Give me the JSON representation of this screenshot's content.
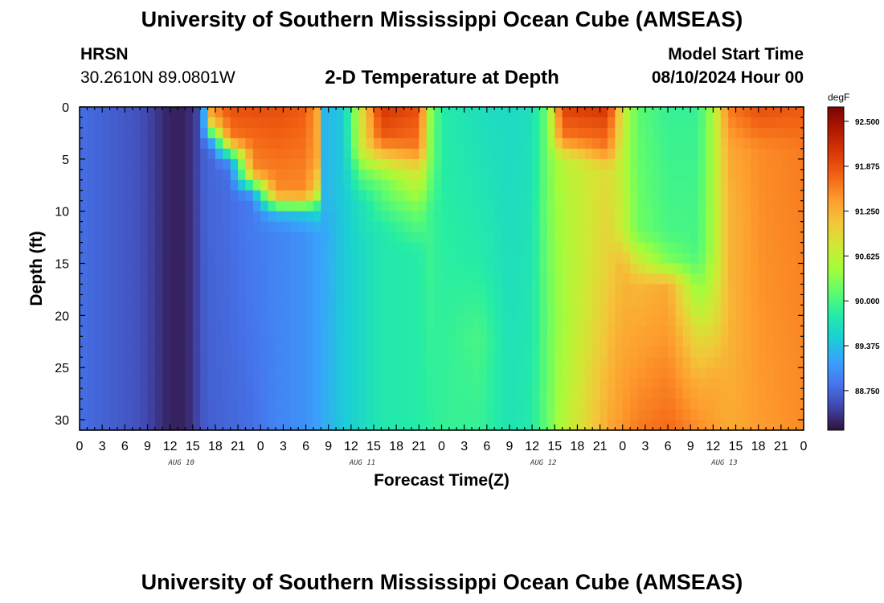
{
  "header": {
    "title": "University of Southern Mississippi Ocean Cube (AMSEAS)",
    "station_code": "HRSN",
    "station_coords": "30.2610N  89.0801W",
    "chart_subtitle": "2-D Temperature at Depth",
    "model_start_label": "Model Start Time",
    "model_start_value": "08/10/2024 Hour 00"
  },
  "footer": {
    "title_repeat": "University of Southern Mississippi Ocean Cube (AMSEAS)"
  },
  "chart_data": {
    "type": "heatmap",
    "title": "2-D Temperature at Depth",
    "xlabel": "Forecast Time(Z)",
    "ylabel": "Depth (ft)",
    "x_range_hours": [
      0,
      96
    ],
    "x_tick_labels": [
      "0",
      "3",
      "6",
      "9",
      "12",
      "15",
      "18",
      "21",
      "0",
      "3",
      "6",
      "9",
      "12",
      "15",
      "18",
      "21",
      "0",
      "3",
      "6",
      "9",
      "12",
      "15",
      "18",
      "21",
      "0",
      "3",
      "6",
      "9",
      "12",
      "15",
      "18",
      "21",
      "0"
    ],
    "x_day_labels": [
      "AUG 10",
      "AUG 11",
      "AUG 12",
      "AUG 13"
    ],
    "y_range": [
      0,
      31
    ],
    "y_tick_labels": [
      "0",
      "5",
      "10",
      "15",
      "20",
      "25",
      "30"
    ],
    "y_tick_values": [
      0,
      5,
      10,
      15,
      20,
      25,
      30
    ],
    "colorbar": {
      "unit": "degF",
      "min": 88.2,
      "max": 92.7,
      "tick_labels": [
        "92.500",
        "91.875",
        "91.250",
        "90.625",
        "90.000",
        "89.375",
        "88.750"
      ],
      "tick_values": [
        92.5,
        91.875,
        91.25,
        90.625,
        90.0,
        89.375,
        88.75
      ],
      "colormap": [
        "#30123b",
        "#4145ab",
        "#4675ed",
        "#39a2fc",
        "#1bcfd4",
        "#24eca6",
        "#61fc6c",
        "#a4fc3b",
        "#d1e834",
        "#f3c63a",
        "#fe9b2d",
        "#f36315",
        "#d93806",
        "#b11901",
        "#7a0403"
      ]
    },
    "grid": false,
    "columns": [
      {
        "hour": 0,
        "t": [
          [
            0,
            88.8
          ],
          [
            31,
            88.8
          ]
        ]
      },
      {
        "hour": 4,
        "t": [
          [
            0,
            88.7
          ],
          [
            31,
            88.7
          ]
        ]
      },
      {
        "hour": 8,
        "t": [
          [
            0,
            88.6
          ],
          [
            31,
            88.6
          ]
        ]
      },
      {
        "hour": 10,
        "t": [
          [
            0,
            88.45
          ],
          [
            31,
            88.45
          ]
        ]
      },
      {
        "hour": 12,
        "t": [
          [
            0,
            88.3
          ],
          [
            31,
            88.3
          ]
        ]
      },
      {
        "hour": 14,
        "t": [
          [
            0,
            88.3
          ],
          [
            31,
            88.3
          ]
        ]
      },
      {
        "hour": 15.5,
        "t": [
          [
            0,
            88.5
          ],
          [
            31,
            88.5
          ]
        ]
      },
      {
        "hour": 16.5,
        "t": [
          [
            0,
            89.2
          ],
          [
            2,
            89.2
          ],
          [
            3,
            88.9
          ],
          [
            4,
            88.7
          ],
          [
            31,
            88.65
          ]
        ]
      },
      {
        "hour": 17.5,
        "t": [
          [
            0,
            91.5
          ],
          [
            2,
            90.8
          ],
          [
            3,
            89.4
          ],
          [
            4,
            88.9
          ],
          [
            5,
            88.75
          ],
          [
            31,
            88.7
          ]
        ]
      },
      {
        "hour": 20,
        "t": [
          [
            0,
            91.9
          ],
          [
            3,
            91.6
          ],
          [
            4,
            90.6
          ],
          [
            5,
            89.2
          ],
          [
            6,
            88.85
          ],
          [
            7,
            88.8
          ],
          [
            31,
            88.75
          ]
        ]
      },
      {
        "hour": 23,
        "t": [
          [
            0,
            91.9
          ],
          [
            6,
            91.5
          ],
          [
            7,
            90.8
          ],
          [
            8,
            89.3
          ],
          [
            9,
            88.9
          ],
          [
            31,
            88.8
          ]
        ]
      },
      {
        "hour": 26,
        "t": [
          [
            0,
            91.9
          ],
          [
            8,
            91.5
          ],
          [
            9,
            90.9
          ],
          [
            10,
            89.4
          ],
          [
            11,
            89.1
          ],
          [
            12,
            88.95
          ],
          [
            31,
            88.95
          ]
        ]
      },
      {
        "hour": 30,
        "t": [
          [
            0,
            91.8
          ],
          [
            8,
            91.5
          ],
          [
            9,
            91.0
          ],
          [
            10,
            89.5
          ],
          [
            11,
            89.3
          ],
          [
            12,
            89.05
          ],
          [
            31,
            89.05
          ]
        ]
      },
      {
        "hour": 31.5,
        "t": [
          [
            0,
            91.3
          ],
          [
            5,
            91.3
          ],
          [
            8,
            90.9
          ],
          [
            10,
            89.6
          ],
          [
            12,
            89.15
          ],
          [
            31,
            89.15
          ]
        ]
      },
      {
        "hour": 32.5,
        "t": [
          [
            0,
            89.3
          ],
          [
            9,
            89.3
          ],
          [
            12,
            89.2
          ],
          [
            31,
            89.25
          ]
        ]
      },
      {
        "hour": 35,
        "t": [
          [
            0,
            89.45
          ],
          [
            31,
            89.45
          ]
        ]
      },
      {
        "hour": 37.5,
        "t": [
          [
            0,
            90.9
          ],
          [
            4,
            90.8
          ],
          [
            6,
            90.2
          ],
          [
            9,
            89.7
          ],
          [
            14,
            89.6
          ],
          [
            31,
            89.6
          ]
        ]
      },
      {
        "hour": 40,
        "t": [
          [
            0,
            92.1
          ],
          [
            3,
            91.8
          ],
          [
            5,
            90.9
          ],
          [
            7,
            90.2
          ],
          [
            12,
            89.75
          ],
          [
            31,
            89.75
          ]
        ]
      },
      {
        "hour": 45,
        "t": [
          [
            0,
            91.9
          ],
          [
            4,
            91.6
          ],
          [
            6,
            90.9
          ],
          [
            10,
            90.2
          ],
          [
            14,
            89.8
          ],
          [
            31,
            89.8
          ]
        ]
      },
      {
        "hour": 46.5,
        "t": [
          [
            0,
            90.4
          ],
          [
            5,
            90.3
          ],
          [
            10,
            89.95
          ],
          [
            31,
            89.85
          ]
        ]
      },
      {
        "hour": 48,
        "t": [
          [
            0,
            89.8
          ],
          [
            31,
            89.9
          ]
        ]
      },
      {
        "hour": 53,
        "t": [
          [
            0,
            89.65
          ],
          [
            15,
            89.8
          ],
          [
            22,
            90.0
          ],
          [
            31,
            89.9
          ]
        ]
      },
      {
        "hour": 57,
        "t": [
          [
            0,
            89.6
          ],
          [
            31,
            89.7
          ]
        ]
      },
      {
        "hour": 60,
        "t": [
          [
            0,
            89.65
          ],
          [
            31,
            89.8
          ]
        ]
      },
      {
        "hour": 62,
        "t": [
          [
            0,
            90.2
          ],
          [
            10,
            90.2
          ],
          [
            20,
            90.15
          ],
          [
            31,
            90.15
          ]
        ]
      },
      {
        "hour": 64,
        "t": [
          [
            0,
            92.0
          ],
          [
            3,
            91.6
          ],
          [
            5,
            90.6
          ],
          [
            10,
            90.5
          ],
          [
            20,
            90.45
          ],
          [
            31,
            90.55
          ]
        ]
      },
      {
        "hour": 70,
        "t": [
          [
            0,
            92.1
          ],
          [
            4,
            91.6
          ],
          [
            6,
            90.9
          ],
          [
            15,
            91.0
          ],
          [
            31,
            91.3
          ]
        ]
      },
      {
        "hour": 72,
        "t": [
          [
            0,
            90.8
          ],
          [
            5,
            90.6
          ],
          [
            12,
            90.7
          ],
          [
            15,
            91.2
          ],
          [
            31,
            91.45
          ]
        ]
      },
      {
        "hour": 74,
        "t": [
          [
            0,
            90.1
          ],
          [
            12,
            90.2
          ],
          [
            15,
            90.8
          ],
          [
            17,
            91.2
          ],
          [
            31,
            91.6
          ]
        ]
      },
      {
        "hour": 78,
        "t": [
          [
            0,
            89.9
          ],
          [
            12,
            90.0
          ],
          [
            15,
            90.3
          ],
          [
            17,
            91.3
          ],
          [
            31,
            91.7
          ]
        ]
      },
      {
        "hour": 82,
        "t": [
          [
            0,
            89.9
          ],
          [
            14,
            90.0
          ],
          [
            17,
            90.3
          ],
          [
            22,
            90.9
          ],
          [
            27,
            91.3
          ],
          [
            31,
            91.5
          ]
        ]
      },
      {
        "hour": 84,
        "t": [
          [
            0,
            90.5
          ],
          [
            14,
            90.5
          ],
          [
            20,
            90.8
          ],
          [
            26,
            91.3
          ],
          [
            31,
            91.4
          ]
        ]
      },
      {
        "hour": 86,
        "t": [
          [
            0,
            91.6
          ],
          [
            4,
            91.3
          ],
          [
            10,
            91.2
          ],
          [
            20,
            91.2
          ],
          [
            31,
            91.3
          ]
        ]
      },
      {
        "hour": 90,
        "t": [
          [
            0,
            91.9
          ],
          [
            4,
            91.5
          ],
          [
            31,
            91.4
          ]
        ]
      },
      {
        "hour": 96,
        "t": [
          [
            0,
            91.8
          ],
          [
            4,
            91.6
          ],
          [
            31,
            91.5
          ]
        ]
      }
    ]
  }
}
